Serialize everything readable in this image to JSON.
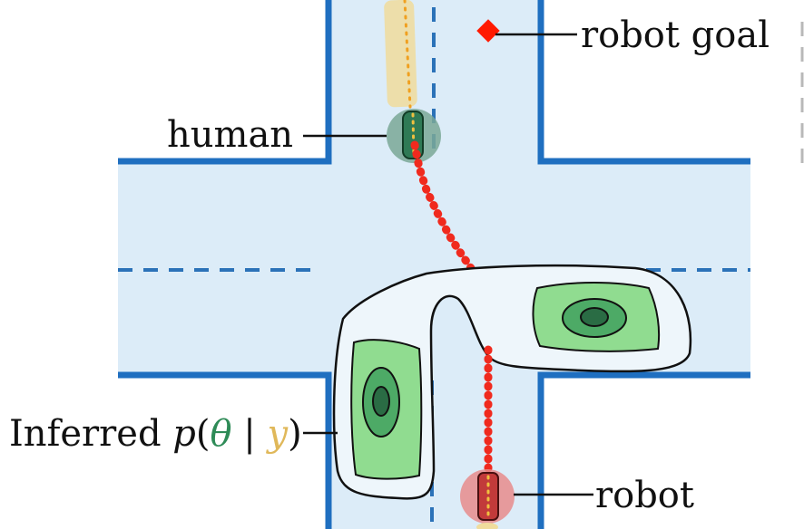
{
  "labels": {
    "robot_goal": "robot goal",
    "human": "human",
    "robot": "robot",
    "inferred_prefix": "Inferred ",
    "p_symbol": "p",
    "open_paren": "(",
    "theta_symbol": "θ",
    "bar_symbol": " | ",
    "y_symbol": "y",
    "close_paren": ")"
  },
  "colors": {
    "road_fill": "#dcecf8",
    "road_wall": "#1f6fc0",
    "lane_dash": "#2b72b8",
    "goal_marker": "#ff1a00",
    "robot_path": "#f02a1e",
    "human_marker": "#2f7a55",
    "robot_marker": "#d84a4a",
    "theta_color": "#2e8b57",
    "y_color": "#e0b85a",
    "density_light": "#90dc90",
    "density_mid": "#4daa66",
    "density_dark": "#2a6c44"
  },
  "icons": {
    "goal": "diamond-marker-icon",
    "human": "human-agent-icon",
    "robot": "robot-agent-icon"
  }
}
